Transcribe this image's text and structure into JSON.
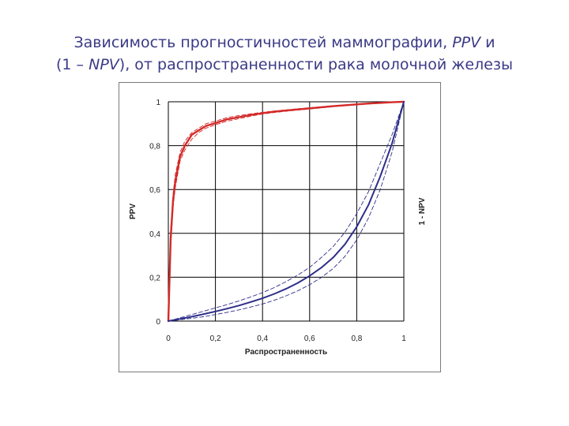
{
  "slide": {
    "title_line1_before": "Зависимость прогностичностей маммографии, ",
    "title_line1_em": "PPV",
    "title_line1_after": " и",
    "title_line2_before": "(1 – ",
    "title_line2_em": "NPV",
    "title_line2_after": "), от распространенности рака молочной железы"
  },
  "colors": {
    "ppv": "#d42a2a",
    "npv": "#2e2e8a",
    "grid": "#000000",
    "title": "#3a3a86"
  },
  "chart_data": {
    "type": "line",
    "xlabel": "Распространенность",
    "ylabel_left": "PPV",
    "ylabel_right": "1 - NPV",
    "xlim": [
      0,
      1
    ],
    "ylim": [
      0,
      1
    ],
    "x_ticks": [
      "0",
      "0,2",
      "0,4",
      "0,6",
      "0,8",
      "1"
    ],
    "y_ticks": [
      "0",
      "0,2",
      "0,4",
      "0,6",
      "0,8",
      "1"
    ],
    "grid": true,
    "x": [
      0,
      0.01,
      0.02,
      0.03,
      0.05,
      0.07,
      0.1,
      0.13,
      0.16,
      0.2,
      0.25,
      0.3,
      0.35,
      0.4,
      0.45,
      0.5,
      0.55,
      0.6,
      0.65,
      0.7,
      0.75,
      0.8,
      0.85,
      0.9,
      0.95,
      1
    ],
    "series": [
      {
        "key": "ppv",
        "style": "solid",
        "values": [
          0,
          0.38,
          0.55,
          0.64,
          0.75,
          0.8,
          0.85,
          0.87,
          0.89,
          0.903,
          0.92,
          0.93,
          0.94,
          0.948,
          0.955,
          0.96,
          0.965,
          0.97,
          0.975,
          0.98,
          0.984,
          0.988,
          0.992,
          0.995,
          0.998,
          1
        ]
      },
      {
        "key": "ppv_upper",
        "style": "dashed",
        "values": [
          0,
          0.42,
          0.58,
          0.67,
          0.77,
          0.82,
          0.86,
          0.88,
          0.9,
          0.912,
          0.928,
          0.937,
          0.945,
          0.952,
          0.958,
          0.963,
          0.968,
          0.973,
          0.977,
          0.982,
          0.986,
          0.99,
          0.993,
          0.996,
          0.998,
          1
        ]
      },
      {
        "key": "ppv_lower",
        "style": "dashed",
        "values": [
          0,
          0.34,
          0.52,
          0.61,
          0.73,
          0.78,
          0.83,
          0.86,
          0.88,
          0.895,
          0.912,
          0.923,
          0.934,
          0.944,
          0.951,
          0.957,
          0.962,
          0.967,
          0.972,
          0.978,
          0.982,
          0.986,
          0.99,
          0.994,
          0.997,
          1
        ]
      },
      {
        "key": "npv",
        "style": "solid",
        "values": [
          0,
          0.002,
          0.004,
          0.006,
          0.01,
          0.014,
          0.02,
          0.027,
          0.034,
          0.044,
          0.057,
          0.071,
          0.087,
          0.104,
          0.124,
          0.147,
          0.174,
          0.206,
          0.244,
          0.29,
          0.35,
          0.43,
          0.53,
          0.66,
          0.81,
          1
        ]
      },
      {
        "key": "npv_upper",
        "style": "dashed",
        "values": [
          0,
          0.003,
          0.006,
          0.009,
          0.015,
          0.021,
          0.03,
          0.039,
          0.048,
          0.06,
          0.075,
          0.092,
          0.11,
          0.13,
          0.153,
          0.18,
          0.21,
          0.245,
          0.29,
          0.34,
          0.405,
          0.49,
          0.59,
          0.72,
          0.85,
          1
        ]
      },
      {
        "key": "npv_lower",
        "style": "dashed",
        "values": [
          0,
          0.001,
          0.002,
          0.003,
          0.006,
          0.009,
          0.013,
          0.017,
          0.022,
          0.03,
          0.04,
          0.051,
          0.064,
          0.078,
          0.095,
          0.115,
          0.138,
          0.166,
          0.199,
          0.24,
          0.295,
          0.37,
          0.47,
          0.6,
          0.77,
          1
        ]
      }
    ]
  }
}
